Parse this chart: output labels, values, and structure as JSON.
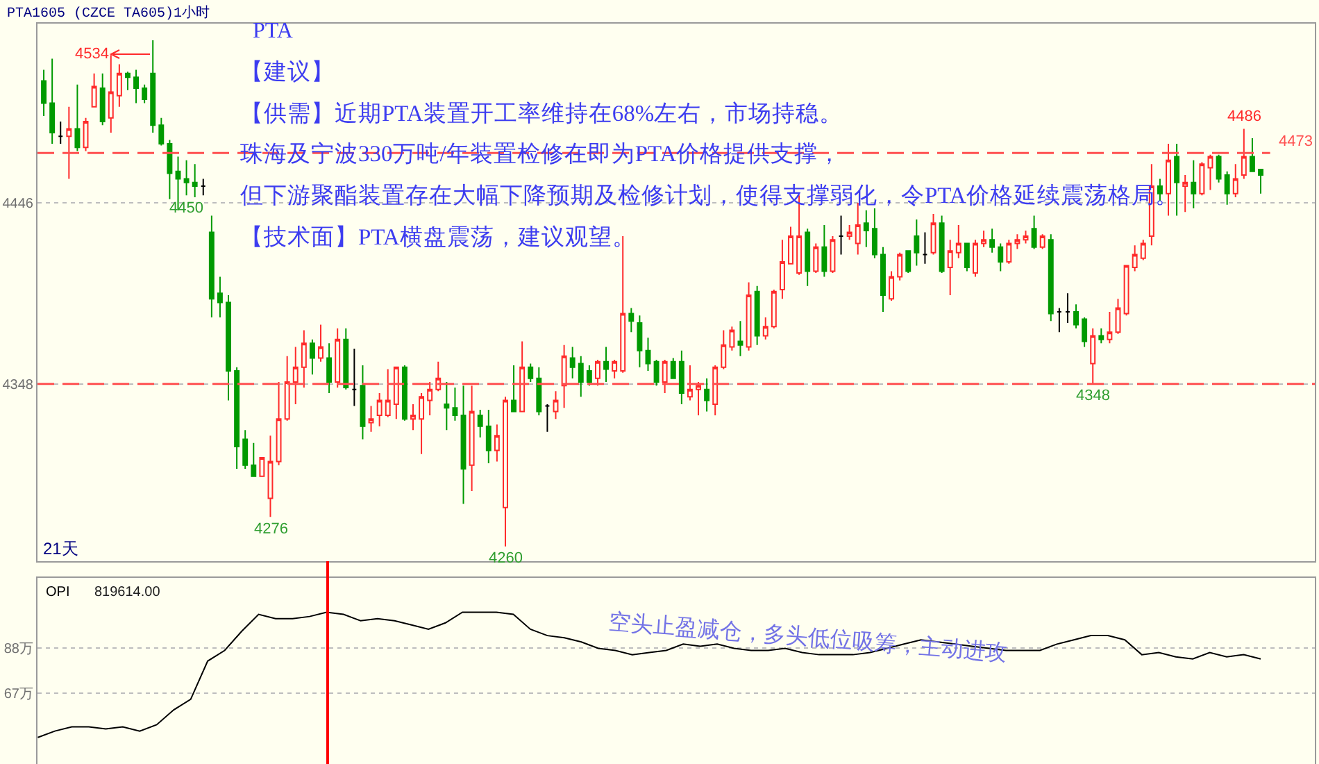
{
  "chart_data": [
    {
      "type": "candlestick",
      "title": "PTA1605 (CZCE TA605)1小时",
      "subtitle": "PTA",
      "categories": [
        null,
        null,
        null,
        null,
        null,
        null,
        null,
        null,
        null,
        null,
        null,
        null,
        null,
        null,
        null,
        null,
        null,
        null,
        null,
        null,
        null,
        null,
        null,
        null,
        null,
        null,
        null,
        null,
        null,
        null,
        null,
        null,
        null,
        null,
        null,
        null,
        null,
        null,
        null,
        null,
        null,
        null,
        null,
        null,
        null,
        null,
        null,
        null,
        null,
        null,
        null,
        null,
        null,
        null,
        null,
        null,
        null,
        null,
        null,
        null,
        null,
        null,
        null,
        null,
        null,
        null,
        null,
        null,
        null,
        null,
        null,
        null,
        null,
        null,
        null,
        null,
        null,
        null,
        null,
        null,
        null,
        null,
        null,
        null,
        null,
        null,
        null,
        null,
        null,
        null,
        null,
        null,
        null,
        null,
        null,
        null,
        null,
        null,
        null,
        null,
        null,
        null,
        null,
        null,
        null,
        null,
        null,
        null,
        null,
        null,
        null,
        null,
        null,
        null,
        null,
        null,
        null,
        null,
        null,
        null,
        null,
        null,
        null,
        null,
        null,
        null,
        null,
        null,
        null,
        null,
        null,
        null,
        null,
        null,
        null,
        null,
        null,
        null,
        null,
        null,
        null,
        null,
        null,
        null,
        null,
        null
      ],
      "ohlc": [
        [
          4512,
          4518,
          4493,
          4500
        ],
        [
          4500,
          4524,
          4478,
          4484
        ],
        [
          4482,
          4490,
          4478,
          4482
        ],
        [
          4482,
          4498,
          4459,
          4486
        ],
        [
          4486,
          4510,
          4474,
          4476
        ],
        [
          4476,
          4492,
          4474,
          4490
        ],
        [
          4498,
          4516,
          4498,
          4509
        ],
        [
          4508,
          4516,
          4488,
          4490
        ],
        [
          4492,
          4526,
          4484,
          4506
        ],
        [
          4504,
          4521,
          4498,
          4516
        ],
        [
          4516,
          4517,
          4507,
          4514
        ],
        [
          4514,
          4518,
          4500,
          4508
        ],
        [
          4508,
          4510,
          4500,
          4502
        ],
        [
          4516,
          4534,
          4484,
          4488
        ],
        [
          4488,
          4492,
          4477,
          4478
        ],
        [
          4478,
          4480,
          4448,
          4462
        ],
        [
          4463,
          4471,
          4442,
          4459
        ],
        [
          4459,
          4469,
          4450,
          4457
        ],
        [
          4457,
          4467,
          4449,
          4455
        ],
        [
          4455,
          4459,
          4450,
          4455
        ],
        [
          4430,
          4439,
          4384,
          4394
        ],
        [
          4397,
          4406,
          4384,
          4392
        ],
        [
          4392,
          4396,
          4339,
          4355
        ],
        [
          4355,
          4357,
          4302,
          4314
        ],
        [
          4318,
          4323,
          4302,
          4304
        ],
        [
          4304,
          4316,
          4298,
          4298
        ],
        [
          4298,
          4308,
          4298,
          4308
        ],
        [
          4286,
          4320,
          4276,
          4306
        ],
        [
          4306,
          4349,
          4304,
          4329
        ],
        [
          4329,
          4363,
          4328,
          4349
        ],
        [
          4349,
          4368,
          4337,
          4357
        ],
        [
          4357,
          4377,
          4346,
          4370
        ],
        [
          4370,
          4372,
          4353,
          4362
        ],
        [
          4362,
          4380,
          4360,
          4368
        ],
        [
          4362,
          4370,
          4343,
          4349
        ],
        [
          4349,
          4378,
          4346,
          4372
        ],
        [
          4372,
          4378,
          4345,
          4346
        ],
        [
          4345,
          4367,
          4336,
          4345
        ],
        [
          4347,
          4358,
          4318,
          4325
        ],
        [
          4327,
          4336,
          4322,
          4329
        ],
        [
          4331,
          4343,
          4325,
          4339
        ],
        [
          4331,
          4356,
          4330,
          4339
        ],
        [
          4337,
          4357,
          4329,
          4357
        ],
        [
          4357,
          4358,
          4328,
          4329
        ],
        [
          4329,
          4337,
          4323,
          4331
        ],
        [
          4329,
          4343,
          4310,
          4341
        ],
        [
          4339,
          4349,
          4331,
          4345
        ],
        [
          4345,
          4360,
          4344,
          4351
        ],
        [
          4337,
          4349,
          4323,
          4335
        ],
        [
          4335,
          4346,
          4328,
          4331
        ],
        [
          4331,
          4347,
          4283,
          4302
        ],
        [
          4304,
          4347,
          4290,
          4333
        ],
        [
          4331,
          4334,
          4319,
          4325
        ],
        [
          4325,
          4334,
          4305,
          4312
        ],
        [
          4312,
          4326,
          4306,
          4320
        ],
        [
          4281,
          4341,
          4260,
          4339
        ],
        [
          4339,
          4358,
          4333,
          4333
        ],
        [
          4333,
          4371,
          4333,
          4357
        ],
        [
          4357,
          4359,
          4349,
          4351
        ],
        [
          4351,
          4357,
          4331,
          4333
        ],
        [
          4336,
          4337,
          4322,
          4336
        ],
        [
          4333,
          4344,
          4329,
          4339
        ],
        [
          4347,
          4369,
          4335,
          4363
        ],
        [
          4362,
          4368,
          4351,
          4357
        ],
        [
          4359,
          4363,
          4341,
          4349
        ],
        [
          4355,
          4358,
          4347,
          4349
        ],
        [
          4351,
          4361,
          4347,
          4360
        ],
        [
          4360,
          4368,
          4349,
          4356
        ],
        [
          4355,
          4361,
          4351,
          4360
        ],
        [
          4355,
          4428,
          4354,
          4386
        ],
        [
          4386,
          4389,
          4376,
          4382
        ],
        [
          4381,
          4385,
          4357,
          4366
        ],
        [
          4366,
          4373,
          4355,
          4359
        ],
        [
          4360,
          4361,
          4347,
          4349
        ],
        [
          4349,
          4361,
          4343,
          4360
        ],
        [
          4360,
          4362,
          4351,
          4351
        ],
        [
          4360,
          4366,
          4337,
          4343
        ],
        [
          4341,
          4358,
          4339,
          4345
        ],
        [
          4345,
          4349,
          4331,
          4347
        ],
        [
          4345,
          4351,
          4333,
          4339
        ],
        [
          4337,
          4358,
          4331,
          4357
        ],
        [
          4357,
          4377,
          4356,
          4369
        ],
        [
          4368,
          4379,
          4366,
          4377
        ],
        [
          4371,
          4382,
          4363,
          4369
        ],
        [
          4368,
          4403,
          4366,
          4396
        ],
        [
          4398,
          4401,
          4369,
          4374
        ],
        [
          4374,
          4384,
          4372,
          4379
        ],
        [
          4379,
          4399,
          4378,
          4398
        ],
        [
          4399,
          4426,
          4394,
          4414
        ],
        [
          4413,
          4433,
          4413,
          4428
        ],
        [
          4408,
          4450,
          4407,
          4428
        ],
        [
          4430,
          4432,
          4401,
          4409
        ],
        [
          4409,
          4424,
          4408,
          4422
        ],
        [
          4422,
          4434,
          4406,
          4409
        ],
        [
          4409,
          4428,
          4408,
          4426
        ],
        [
          4428,
          4439,
          4418,
          4428
        ],
        [
          4428,
          4434,
          4426,
          4430
        ],
        [
          4424,
          4446,
          4418,
          4434
        ],
        [
          4435,
          4442,
          4422,
          4431
        ],
        [
          4432,
          4443,
          4416,
          4418
        ],
        [
          4418,
          4422,
          4387,
          4396
        ],
        [
          4394,
          4409,
          4393,
          4406
        ],
        [
          4406,
          4419,
          4404,
          4418
        ],
        [
          4420,
          4420,
          4408,
          4409
        ],
        [
          4428,
          4437,
          4412,
          4419
        ],
        [
          4418,
          4430,
          4413,
          4418
        ],
        [
          4419,
          4440,
          4418,
          4435
        ],
        [
          4435,
          4439,
          4408,
          4409
        ],
        [
          4411,
          4426,
          4396,
          4420
        ],
        [
          4419,
          4434,
          4416,
          4424
        ],
        [
          4424,
          4424,
          4409,
          4411
        ],
        [
          4408,
          4426,
          4406,
          4424
        ],
        [
          4424,
          4431,
          4422,
          4426
        ],
        [
          4426,
          4432,
          4419,
          4422
        ],
        [
          4422,
          4424,
          4409,
          4414
        ],
        [
          4414,
          4426,
          4413,
          4424
        ],
        [
          4424,
          4429,
          4421,
          4426
        ],
        [
          4426,
          4431,
          4424,
          4428
        ],
        [
          4432,
          4439,
          4421,
          4422
        ],
        [
          4422,
          4429,
          4421,
          4428
        ],
        [
          4426,
          4429,
          4382,
          4386
        ],
        [
          4387,
          4389,
          4376,
          4387
        ],
        [
          4387,
          4397,
          4381,
          4387
        ],
        [
          4387,
          4391,
          4378,
          4380
        ],
        [
          4383,
          4384,
          4368,
          4371
        ],
        [
          4359,
          4378,
          4348,
          4374
        ],
        [
          4374,
          4378,
          4370,
          4372
        ],
        [
          4372,
          4387,
          4370,
          4376
        ],
        [
          4376,
          4394,
          4375,
          4389
        ],
        [
          4386,
          4412,
          4385,
          4412
        ],
        [
          4411,
          4423,
          4409,
          4418
        ],
        [
          4416,
          4426,
          4415,
          4424
        ],
        [
          4428,
          4467,
          4423,
          4455
        ],
        [
          4455,
          4459,
          4447,
          4451
        ],
        [
          4451,
          4478,
          4439,
          4469
        ],
        [
          4471,
          4478,
          4439,
          4457
        ],
        [
          4455,
          4461,
          4441,
          4457
        ],
        [
          4457,
          4469,
          4443,
          4451
        ],
        [
          4451,
          4468,
          4450,
          4467
        ],
        [
          4465,
          4472,
          4453,
          4471
        ],
        [
          4471,
          4472,
          4457,
          4459
        ],
        [
          4461,
          4463,
          4445,
          4451
        ],
        [
          4451,
          4467,
          4449,
          4459
        ],
        [
          4461,
          4486,
          4459,
          4471
        ],
        [
          4471,
          4481,
          4463,
          4463
        ],
        [
          4464,
          4464,
          4451,
          4461
        ]
      ],
      "ylim": [
        4252,
        4543
      ],
      "yticks": [
        4446,
        4348
      ],
      "grid": "y",
      "tick_labels": "y",
      "ref_lines": [
        {
          "axis": "y",
          "value": 4473,
          "label": "4473",
          "color": "#ff5050",
          "line_style": "dashed"
        },
        {
          "axis": "y",
          "value": 4348,
          "color": "#ff5050",
          "line_style": "dashed"
        }
      ],
      "annotations": [
        "【建议】",
        "【供需】近期PTA装置开工率维持在68%左右，市场持稳。",
        "珠海及宁波330万吨/年装置检修在即为PTA价格提供支撑，",
        "但下游聚酯装置存在大幅下降预期及检修计划，使得支撑弱化，令PTA价格延续震荡格局。",
        "【技术面】PTA横盘震荡，建议观望。",
        "21天",
        "4534",
        {
          "text": "4276",
          "y": 4276
        },
        {
          "text": "4260",
          "y": 4260
        },
        {
          "text": "4450",
          "y": 4450
        },
        {
          "text": "4486",
          "y": 4486
        },
        {
          "text": "4348",
          "y": 4348
        }
      ]
    },
    {
      "type": "line",
      "categories": [
        null,
        null,
        null,
        null,
        null,
        null,
        null,
        null,
        null,
        null,
        null,
        null,
        null,
        null,
        null,
        null,
        null,
        null,
        null,
        null,
        null,
        null,
        null,
        null,
        null,
        null,
        null,
        null,
        null,
        null,
        null,
        null,
        null,
        null,
        null,
        null,
        null,
        null,
        null,
        null,
        null,
        null,
        null,
        null,
        null,
        null,
        null,
        null,
        null,
        null,
        null,
        null,
        null,
        null,
        null,
        null,
        null,
        null,
        null,
        null,
        null,
        null,
        null,
        null,
        null,
        null,
        null,
        null,
        null,
        null,
        null,
        null,
        null
      ],
      "series": [
        {
          "name": "OPI",
          "color": "#000000",
          "values": [
            46,
            49,
            51,
            51,
            50,
            51,
            49,
            52,
            59,
            64,
            82,
            87,
            96,
            104,
            102,
            102,
            103,
            105,
            104,
            101,
            102,
            101,
            99,
            97,
            100,
            105,
            105,
            105,
            104,
            97,
            94,
            93,
            91,
            88,
            87,
            85,
            86,
            87,
            90,
            89,
            90,
            88,
            87,
            87,
            88,
            86,
            85,
            85,
            85,
            86,
            88,
            90,
            92,
            91,
            90,
            89,
            88,
            87,
            87,
            87,
            90,
            92,
            94,
            94,
            92,
            85,
            86,
            84,
            83,
            86,
            84,
            85,
            83
          ]
        }
      ],
      "ylim": [
        33.5,
        121.2
      ],
      "yticks": [
        {
          "value": 88,
          "label": "88万"
        },
        {
          "value": 67,
          "label": "67万"
        }
      ],
      "grid": "y",
      "tick_labels": "y",
      "annotations": [
        "819614.00",
        "空头止盈减仓，多头低位吸筹，主动进攻"
      ]
    }
  ]
}
